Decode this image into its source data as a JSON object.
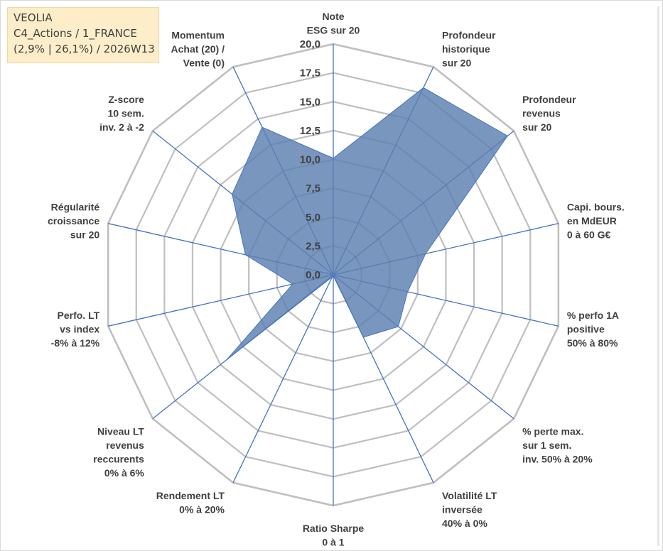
{
  "info": {
    "line1": "VEOLIA",
    "line2": "C4_Actions / 1_FRANCE",
    "line3": "(2,9% | 26,1%) / 2026W13"
  },
  "chart_data": {
    "type": "radar",
    "title": "",
    "range": [
      0,
      20
    ],
    "tick_step": 2.5,
    "ticks": [
      "0,0",
      "2,5",
      "5,0",
      "7,5",
      "10,0",
      "12,5",
      "15,0",
      "17,5",
      "20,0"
    ],
    "grid": true,
    "legend": "none",
    "fill_color": "#5b7fb0",
    "line_color": "#4472c4",
    "grid_color": "#bfbfbf",
    "axes": [
      {
        "label": [
          "Note",
          "ESG sur 20"
        ],
        "value": 10.1
      },
      {
        "label": [
          "Profondeur",
          "historique",
          "sur 20"
        ],
        "value": 18.0
      },
      {
        "label": [
          "Profondeur",
          "revenus",
          "sur 20"
        ],
        "value": 19.3
      },
      {
        "label": [
          "Capi. bours.",
          "en MdEUR",
          "0 à 60 G€"
        ],
        "value": 8.2
      },
      {
        "label": [
          "% perfo 1A",
          "positive",
          "50% à 80%"
        ],
        "value": 6.6
      },
      {
        "label": [
          "% perte max.",
          "sur 1 sem.",
          "inv. 50% à 20%"
        ],
        "value": 7.2
      },
      {
        "label": [
          "Volatilité LT",
          "inversée",
          "40% à 0%"
        ],
        "value": 6.0
      },
      {
        "label": [
          "Ratio Sharpe",
          "0 à 1"
        ],
        "value": 0.1
      },
      {
        "label": [
          "Rendement LT",
          "0% à 20%"
        ],
        "value": 0.2
      },
      {
        "label": [
          "Niveau LT",
          "revenus",
          "reccurents",
          "0% à 6%"
        ],
        "value": 11.8
      },
      {
        "label": [
          "Perfo. LT",
          "vs index",
          "-8% à 12%"
        ],
        "value": 3.6
      },
      {
        "label": [
          "Régularité",
          "croissance",
          "sur 20"
        ],
        "value": 7.8
      },
      {
        "label": [
          "Z-score",
          "10 sem.",
          "inv. 2 à -2"
        ],
        "value": 11.2
      },
      {
        "label": [
          "Momentum",
          "Achat (20) /",
          "Vente (0)"
        ],
        "value": 14.2
      }
    ]
  }
}
